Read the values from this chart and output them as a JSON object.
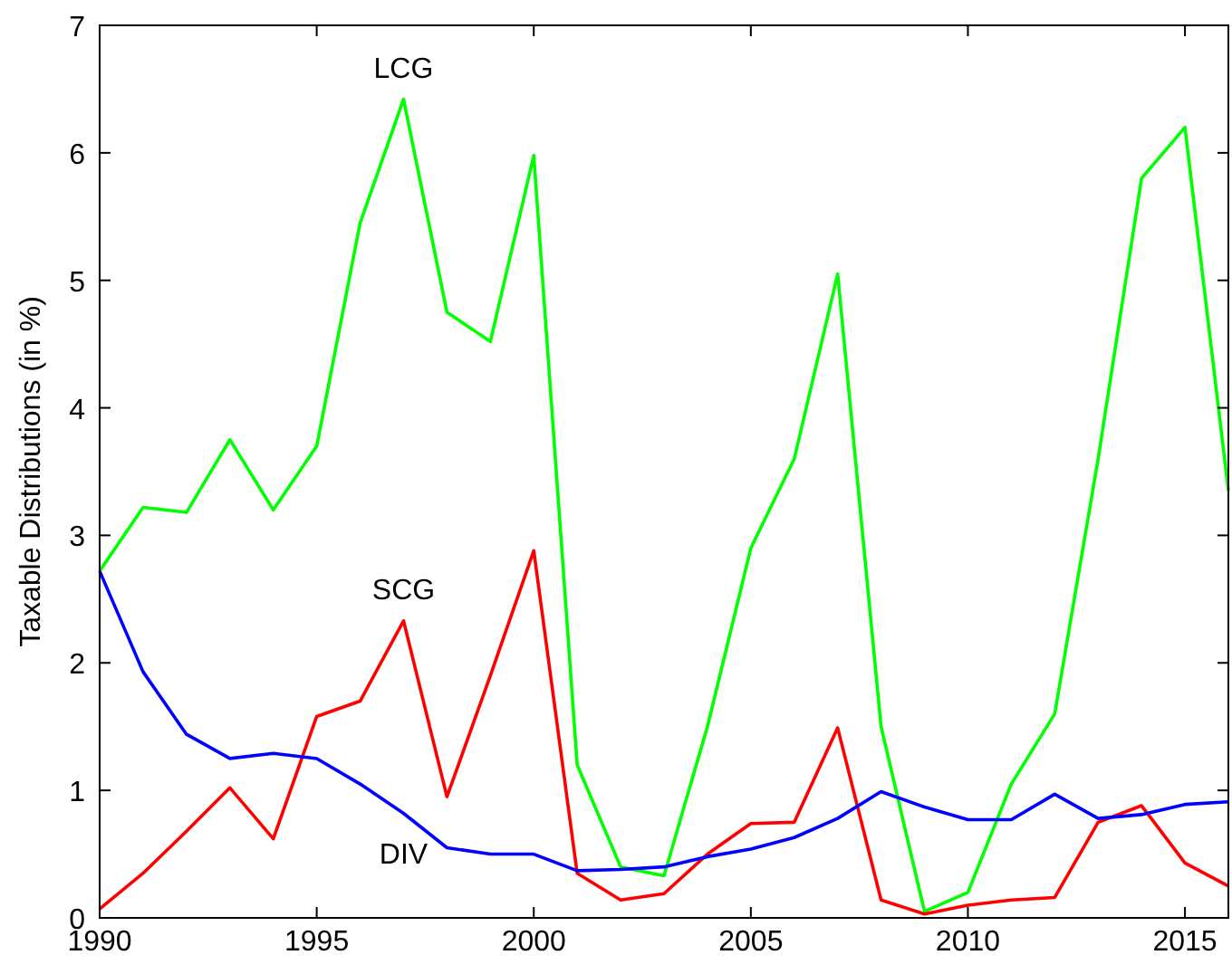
{
  "chart_data": {
    "type": "line",
    "ylabel": "Taxable Distributions (in %)",
    "x": [
      1990,
      1991,
      1992,
      1993,
      1994,
      1995,
      1996,
      1997,
      1998,
      1999,
      2000,
      2001,
      2002,
      2003,
      2004,
      2005,
      2006,
      2007,
      2008,
      2009,
      2010,
      2011,
      2012,
      2013,
      2014,
      2015,
      2016
    ],
    "series": [
      {
        "name": "LCG",
        "color": "#00ff00",
        "values": [
          2.72,
          3.22,
          3.18,
          3.75,
          3.2,
          3.7,
          5.45,
          6.42,
          4.75,
          4.52,
          5.98,
          1.2,
          0.4,
          0.33,
          1.5,
          2.9,
          3.6,
          5.05,
          1.5,
          0.05,
          0.2,
          1.05,
          1.6,
          3.6,
          5.8,
          6.2,
          3.35
        ]
      },
      {
        "name": "SCG",
        "color": "#ff0000",
        "values": [
          0.07,
          0.35,
          0.68,
          1.02,
          0.62,
          1.58,
          1.7,
          2.33,
          0.95,
          1.9,
          2.88,
          0.35,
          0.14,
          0.19,
          0.5,
          0.74,
          0.75,
          1.49,
          0.14,
          0.03,
          0.1,
          0.14,
          0.16,
          0.75,
          0.88,
          0.43,
          0.25
        ]
      },
      {
        "name": "DIV",
        "color": "#0000ff",
        "values": [
          2.72,
          1.93,
          1.44,
          1.25,
          1.29,
          1.25,
          1.05,
          0.82,
          0.55,
          0.5,
          0.5,
          0.37,
          0.38,
          0.4,
          0.48,
          0.54,
          0.63,
          0.78,
          0.99,
          0.87,
          0.77,
          0.77,
          0.97,
          0.78,
          0.81,
          0.89,
          0.91
        ]
      }
    ],
    "xlim": [
      1990,
      2016
    ],
    "xticks": [
      1990,
      1995,
      2000,
      2005,
      2010,
      2015
    ],
    "ylim": [
      0,
      7
    ],
    "yticks": [
      0,
      1,
      2,
      3,
      4,
      5,
      6,
      7
    ],
    "grid": false,
    "marker": "none",
    "line_style": "solid"
  }
}
